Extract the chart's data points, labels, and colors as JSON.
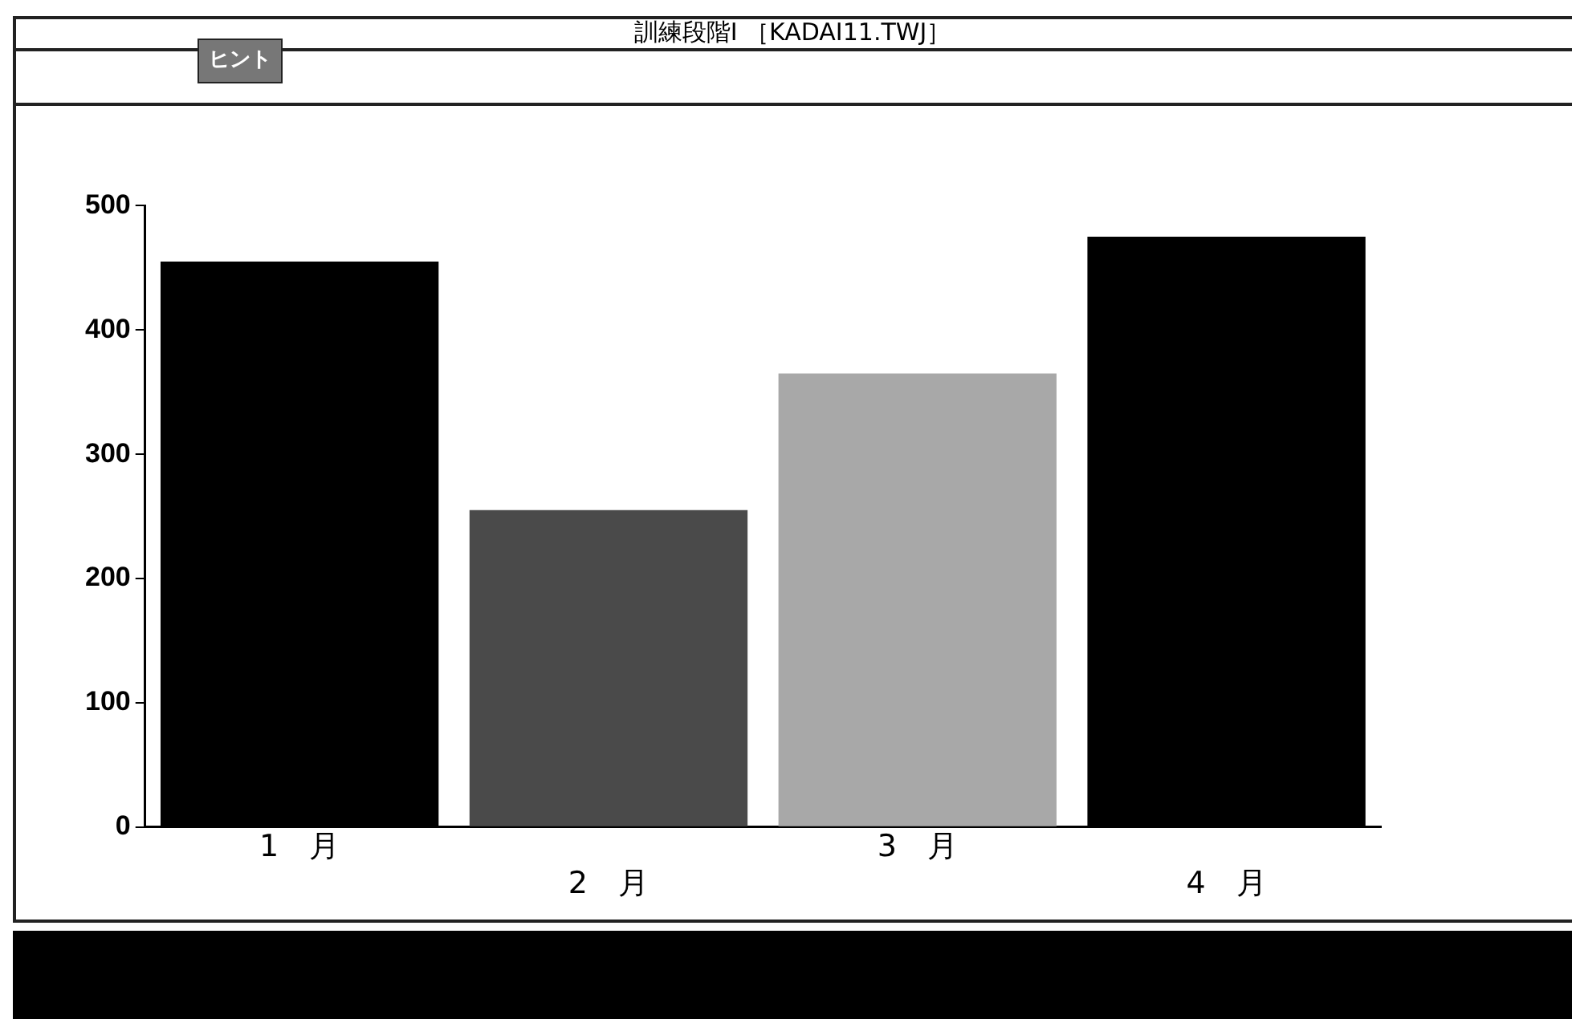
{
  "chart_data": {
    "type": "bar",
    "title": "訓練段階Ⅰ ［KADAI11.TWJ］",
    "annotations": [
      "ヒント"
    ],
    "categories": [
      "1　月",
      "2　月",
      "3　月",
      "4　月"
    ],
    "values": [
      455,
      255,
      365,
      475
    ],
    "colors": [
      "#000000",
      "#4a4a4a",
      "#a8a8a8",
      "#000000"
    ],
    "ylim": [
      0,
      500
    ],
    "yticks": [
      0,
      100,
      200,
      300,
      400,
      500
    ],
    "grid": false,
    "legend": false
  }
}
